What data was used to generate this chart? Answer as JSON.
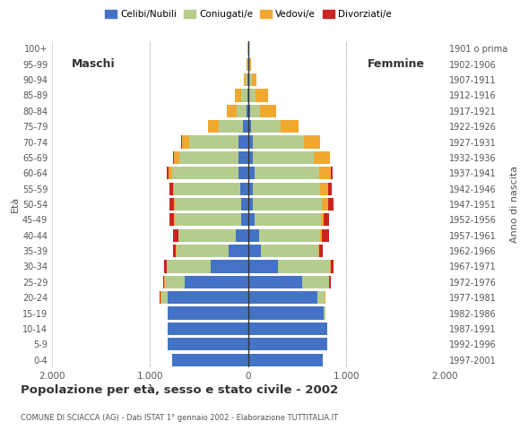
{
  "age_groups": [
    "0-4",
    "5-9",
    "10-14",
    "15-19",
    "20-24",
    "25-29",
    "30-34",
    "35-39",
    "40-44",
    "45-49",
    "50-54",
    "55-59",
    "60-64",
    "65-69",
    "70-74",
    "75-79",
    "80-84",
    "85-89",
    "90-94",
    "95-99",
    "100+"
  ],
  "birth_years": [
    "1997-2001",
    "1992-1996",
    "1987-1991",
    "1982-1986",
    "1977-1981",
    "1972-1976",
    "1967-1971",
    "1962-1966",
    "1957-1961",
    "1952-1956",
    "1947-1951",
    "1942-1946",
    "1937-1941",
    "1932-1936",
    "1927-1931",
    "1922-1926",
    "1917-1921",
    "1912-1916",
    "1907-1911",
    "1902-1906",
    "1901 o prima"
  ],
  "male": {
    "celibi": [
      780,
      820,
      820,
      820,
      820,
      650,
      380,
      200,
      130,
      70,
      70,
      80,
      100,
      100,
      100,
      50,
      20,
      10,
      5,
      0,
      0
    ],
    "coniugati": [
      0,
      0,
      5,
      5,
      70,
      200,
      450,
      530,
      580,
      680,
      680,
      680,
      680,
      600,
      500,
      250,
      100,
      60,
      20,
      10,
      5
    ],
    "vedovi": [
      0,
      0,
      0,
      0,
      5,
      5,
      5,
      5,
      5,
      5,
      5,
      10,
      30,
      60,
      80,
      110,
      100,
      70,
      20,
      10,
      5
    ],
    "divorziati": [
      0,
      0,
      0,
      0,
      5,
      10,
      20,
      30,
      50,
      50,
      50,
      30,
      20,
      5,
      5,
      0,
      0,
      0,
      0,
      0,
      0
    ]
  },
  "female": {
    "celibi": [
      760,
      800,
      800,
      770,
      700,
      550,
      300,
      130,
      110,
      60,
      50,
      50,
      60,
      50,
      50,
      30,
      20,
      10,
      5,
      0,
      0
    ],
    "coniugati": [
      0,
      0,
      5,
      20,
      80,
      270,
      530,
      580,
      620,
      680,
      700,
      680,
      660,
      620,
      520,
      300,
      100,
      60,
      30,
      10,
      5
    ],
    "vedovi": [
      0,
      0,
      0,
      0,
      5,
      5,
      10,
      10,
      20,
      30,
      60,
      80,
      120,
      160,
      160,
      180,
      160,
      130,
      50,
      20,
      5
    ],
    "divorziati": [
      0,
      0,
      0,
      0,
      5,
      15,
      30,
      40,
      70,
      50,
      60,
      40,
      20,
      5,
      5,
      0,
      0,
      0,
      0,
      0,
      0
    ]
  },
  "colors": {
    "celibi": "#4472c4",
    "coniugati": "#b5cc8e",
    "vedovi": "#f0a830",
    "divorziati": "#cc2222"
  },
  "xlim": 2000,
  "xticks": [
    -2000,
    -1000,
    0,
    1000,
    2000
  ],
  "xticklabels": [
    "2.000",
    "1.000",
    "0",
    "1.000",
    "2.000"
  ],
  "title": "Popolazione per età, sesso e stato civile - 2002",
  "subtitle": "COMUNE DI SCIACCA (AG) - Dati ISTAT 1° gennaio 2002 - Elaborazione TUTTITALIA.IT",
  "legend_labels": [
    "Celibi/Nubili",
    "Coniugati/e",
    "Vedovi/e",
    "Divorziati/e"
  ],
  "ylabel_left": "Età",
  "ylabel_right": "Anno di nascita",
  "label_maschi": "Maschi",
  "label_femmine": "Femmine",
  "bg_color": "#ffffff",
  "bar_height": 0.82,
  "grid_color": "#cccccc"
}
